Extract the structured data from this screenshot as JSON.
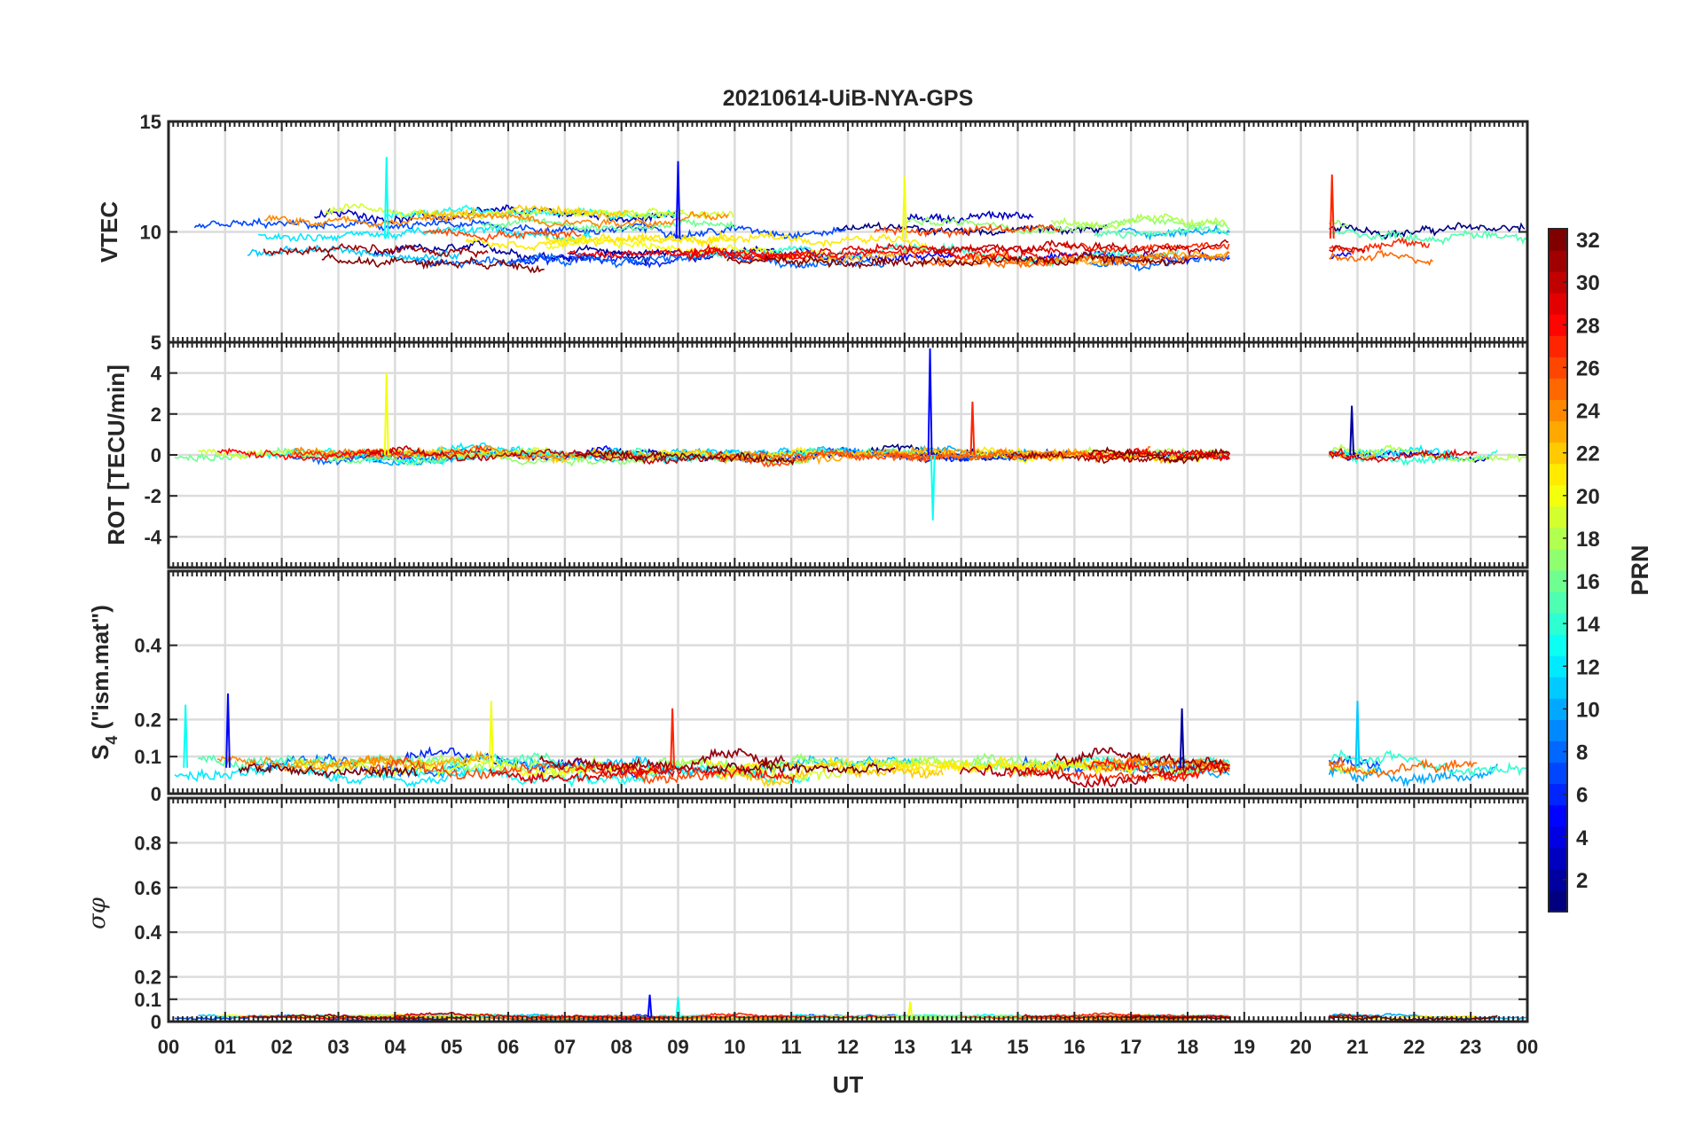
{
  "chart_data": {
    "type": "line",
    "title": "20210614-UiB-NYA-GPS",
    "xlabel": "UT",
    "x_tick_labels": [
      "00",
      "01",
      "02",
      "03",
      "04",
      "05",
      "06",
      "07",
      "08",
      "09",
      "10",
      "11",
      "12",
      "13",
      "14",
      "15",
      "16",
      "17",
      "18",
      "19",
      "20",
      "21",
      "22",
      "23",
      "00"
    ],
    "xlim": [
      0,
      24
    ],
    "data_gap_hours": [
      18.75,
      20.5
    ],
    "panels": [
      {
        "name": "vtec",
        "ylabel": "VTEC",
        "ylim": [
          5,
          15
        ],
        "yticks": [
          5,
          10,
          15
        ],
        "ytick_labels": [
          "5",
          "10",
          "15"
        ],
        "series_summary": {
          "base": 9.7,
          "spread": 1.2,
          "noise": 0.25
        },
        "notable_peaks": [
          {
            "x": 9.0,
            "y": 13.2
          },
          {
            "x": 3.85,
            "y": 13.4
          },
          {
            "x": 13.0,
            "y": 12.5
          },
          {
            "x": 20.55,
            "y": 12.6
          }
        ]
      },
      {
        "name": "rot",
        "ylabel": "ROT [TECU/min]",
        "ylim": [
          -5.5,
          5.5
        ],
        "yticks": [
          -4,
          -2,
          0,
          2,
          4
        ],
        "ytick_labels": [
          "-4",
          "-2",
          "0",
          "2",
          "4"
        ],
        "series_summary": {
          "base": 0,
          "spread": 0.1,
          "noise": 0.25
        },
        "notable_peaks": [
          {
            "x": 13.45,
            "y": 5.2
          },
          {
            "x": 13.5,
            "y": -3.2
          },
          {
            "x": 3.85,
            "y": 4.0
          },
          {
            "x": 14.2,
            "y": 2.6
          },
          {
            "x": 20.9,
            "y": 2.4
          }
        ]
      },
      {
        "name": "s4",
        "ylabel": "S4 (\"ism.mat\")",
        "ylim": [
          0,
          0.6
        ],
        "yticks": [
          0,
          0.1,
          0.2,
          0.4
        ],
        "ytick_labels": [
          "0",
          "0.1",
          "0.2",
          "0.4"
        ],
        "series_summary": {
          "base": 0.07,
          "spread": 0.02,
          "noise": 0.02
        },
        "notable_peaks": [
          {
            "x": 1.05,
            "y": 0.27
          },
          {
            "x": 0.3,
            "y": 0.24
          },
          {
            "x": 5.7,
            "y": 0.25
          },
          {
            "x": 8.9,
            "y": 0.23
          },
          {
            "x": 17.9,
            "y": 0.23
          },
          {
            "x": 21.0,
            "y": 0.25
          }
        ]
      },
      {
        "name": "sigma_phi",
        "ylabel": "σφ",
        "ylim": [
          0,
          1
        ],
        "yticks": [
          0,
          0.1,
          0.2,
          0.4,
          0.6,
          0.8
        ],
        "ytick_labels": [
          "0",
          "0.1",
          "0.2",
          "0.4",
          "0.6",
          "0.8"
        ],
        "series_summary": {
          "base": 0.02,
          "spread": 0.005,
          "noise": 0.008
        },
        "notable_peaks": [
          {
            "x": 8.5,
            "y": 0.12
          },
          {
            "x": 9.0,
            "y": 0.11
          },
          {
            "x": 13.1,
            "y": 0.09
          }
        ]
      }
    ],
    "colorbar": {
      "label": "PRN",
      "range": [
        1,
        32
      ],
      "ticks": [
        2,
        4,
        6,
        8,
        10,
        12,
        14,
        16,
        18,
        20,
        22,
        24,
        26,
        28,
        30,
        32
      ],
      "tick_labels": [
        "2",
        "4",
        "6",
        "8",
        "10",
        "12",
        "14",
        "16",
        "18",
        "20",
        "22",
        "24",
        "26",
        "28",
        "30",
        "32"
      ],
      "colormap": "jet"
    },
    "satellites": [
      1,
      2,
      3,
      5,
      6,
      7,
      8,
      10,
      11,
      12,
      13,
      14,
      15,
      16,
      17,
      18,
      19,
      20,
      21,
      22,
      23,
      24,
      25,
      26,
      27,
      28,
      29,
      30,
      31,
      32
    ],
    "grid": true
  }
}
